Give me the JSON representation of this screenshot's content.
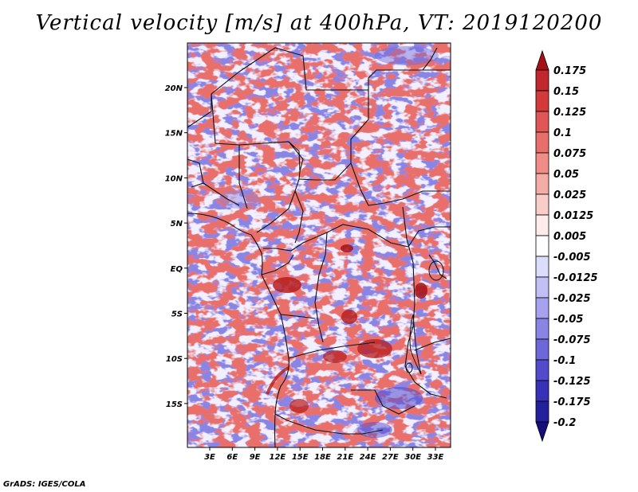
{
  "title": "Vertical velocity [m/s] at 400hPa, VT: 2019120200",
  "footer": "GrADS: IGES/COLA",
  "map": {
    "lat_labels": [
      "20N",
      "15N",
      "10N",
      "5N",
      "EQ",
      "5S",
      "10S",
      "15S"
    ],
    "lon_labels": [
      "3E",
      "6E",
      "9E",
      "12E",
      "15E",
      "18E",
      "21E",
      "24E",
      "27E",
      "30E",
      "33E"
    ],
    "lon_range": [
      0,
      35
    ],
    "lat_range": [
      -20,
      25
    ]
  },
  "colorbar": {
    "labels": [
      "0.175",
      "0.15",
      "0.125",
      "0.1",
      "0.075",
      "0.05",
      "0.025",
      "0.0125",
      "0.005",
      "-0.005",
      "-0.0125",
      "-0.025",
      "-0.05",
      "-0.075",
      "-0.1",
      "-0.125",
      "-0.175",
      "-0.2"
    ],
    "colors": [
      "#a50f15",
      "#c1272d",
      "#d33b3b",
      "#e05555",
      "#e8706a",
      "#ef8d86",
      "#f4aca6",
      "#f9cdc9",
      "#fdeceb",
      "#ffffff",
      "#dcdcfb",
      "#c1c0f6",
      "#a5a3ef",
      "#8985e5",
      "#6d68d9",
      "#514bcc",
      "#3833b6",
      "#22209a",
      "#150f7c"
    ]
  }
}
